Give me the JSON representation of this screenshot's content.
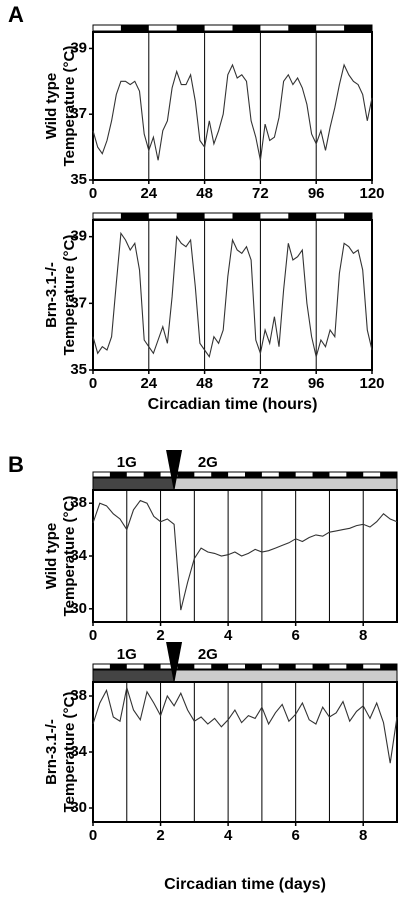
{
  "chart_data": [
    {
      "type": "line",
      "panel": "A",
      "ylabel": [
        "Wild type",
        "Temperature (°C)"
      ],
      "color": "#333333",
      "xlim": [
        0,
        120
      ],
      "xticks": [
        0,
        24,
        48,
        72,
        96,
        120
      ],
      "ylim": [
        35,
        39.5
      ],
      "yticks": [
        35,
        37,
        39
      ],
      "vlines": [
        24,
        48,
        72,
        96
      ],
      "light_dark": {
        "period": 24,
        "dark_start": 12
      },
      "x": [
        0,
        2,
        4,
        6,
        8,
        10,
        12,
        14,
        16,
        18,
        20,
        22,
        24,
        26,
        28,
        30,
        32,
        34,
        36,
        38,
        40,
        42,
        44,
        46,
        48,
        50,
        52,
        54,
        56,
        58,
        60,
        62,
        64,
        66,
        68,
        70,
        72,
        74,
        76,
        78,
        80,
        82,
        84,
        86,
        88,
        90,
        92,
        94,
        96,
        98,
        100,
        102,
        104,
        106,
        108,
        110,
        112,
        114,
        116,
        118,
        120
      ],
      "values": [
        36.5,
        36.0,
        35.8,
        36.2,
        36.8,
        37.6,
        38.0,
        38.0,
        37.9,
        38.0,
        37.7,
        36.4,
        35.9,
        36.3,
        35.6,
        36.5,
        36.8,
        37.8,
        38.3,
        37.9,
        37.9,
        38.2,
        37.4,
        36.2,
        36.0,
        36.8,
        36.1,
        36.5,
        37.0,
        38.2,
        38.5,
        38.1,
        38.2,
        38.0,
        36.8,
        36.3,
        35.6,
        36.7,
        36.2,
        36.3,
        36.9,
        38.0,
        38.2,
        37.9,
        38.1,
        37.8,
        37.3,
        36.4,
        36.1,
        36.5,
        35.9,
        36.6,
        37.2,
        37.9,
        38.5,
        38.2,
        38.0,
        37.9,
        37.6,
        36.8,
        37.5
      ]
    },
    {
      "type": "line",
      "ylabel": [
        "Brn-3.1-/-",
        "Temperature (°C)"
      ],
      "xlabel": "Circadian time (hours)",
      "color": "#333333",
      "xlim": [
        0,
        120
      ],
      "xticks": [
        0,
        24,
        48,
        72,
        96,
        120
      ],
      "ylim": [
        35,
        39.5
      ],
      "yticks": [
        35,
        37,
        39
      ],
      "vlines": [
        24,
        48,
        72,
        96
      ],
      "light_dark": {
        "period": 24,
        "dark_start": 12
      },
      "x": [
        0,
        2,
        4,
        6,
        8,
        10,
        12,
        14,
        16,
        18,
        20,
        22,
        24,
        26,
        28,
        30,
        32,
        34,
        36,
        38,
        40,
        42,
        44,
        46,
        48,
        50,
        52,
        54,
        56,
        58,
        60,
        62,
        64,
        66,
        68,
        70,
        72,
        74,
        76,
        78,
        80,
        82,
        84,
        86,
        88,
        90,
        92,
        94,
        96,
        98,
        100,
        102,
        104,
        106,
        108,
        110,
        112,
        114,
        116,
        118,
        120
      ],
      "values": [
        36.0,
        35.5,
        35.7,
        35.6,
        36.0,
        37.6,
        39.1,
        38.9,
        38.6,
        38.8,
        38.0,
        35.9,
        35.7,
        35.5,
        35.9,
        36.3,
        35.8,
        37.2,
        39.0,
        38.8,
        38.7,
        38.9,
        37.5,
        35.8,
        35.6,
        35.4,
        36.0,
        35.8,
        36.2,
        37.8,
        38.9,
        38.6,
        38.5,
        38.7,
        38.3,
        35.9,
        35.5,
        36.2,
        35.8,
        36.6,
        35.7,
        37.4,
        38.8,
        38.3,
        38.4,
        38.6,
        37.0,
        36.0,
        35.4,
        35.9,
        35.7,
        36.2,
        36.0,
        37.9,
        38.8,
        38.7,
        38.5,
        38.6,
        38.0,
        36.2,
        35.6
      ]
    },
    {
      "type": "line",
      "panel": "B",
      "ylabel": [
        "Wild type",
        "Temperature (°C)"
      ],
      "color": "#333333",
      "xlim": [
        0,
        9
      ],
      "xticks": [
        0,
        2,
        4,
        6,
        8
      ],
      "ylim": [
        29,
        39
      ],
      "yticks": [
        30,
        34,
        38
      ],
      "vlines": [
        1,
        2,
        3,
        4,
        5,
        6,
        7,
        8
      ],
      "light_dark": {
        "period": 1,
        "dark_start": 0.5
      },
      "phases": [
        {
          "label": "1G",
          "start": 0,
          "end": 2.4,
          "color": "#444444"
        },
        {
          "label": "2G",
          "start": 2.4,
          "end": 9,
          "color": "#cccccc"
        }
      ],
      "arrow_x": 2.4,
      "x": [
        0,
        0.2,
        0.4,
        0.6,
        0.8,
        1,
        1.2,
        1.4,
        1.6,
        1.8,
        2,
        2.2,
        2.4,
        2.6,
        2.8,
        3,
        3.2,
        3.4,
        3.6,
        3.8,
        4,
        4.2,
        4.4,
        4.6,
        4.8,
        5,
        5.2,
        5.4,
        5.6,
        5.8,
        6,
        6.2,
        6.4,
        6.6,
        6.8,
        7,
        7.2,
        7.4,
        7.6,
        7.8,
        8,
        8.2,
        8.4,
        8.6,
        8.8,
        9
      ],
      "values": [
        36.5,
        38.0,
        37.8,
        37.2,
        36.8,
        36.0,
        37.5,
        38.2,
        38.0,
        37.0,
        36.6,
        36.8,
        36.4,
        29.9,
        32.0,
        33.8,
        34.6,
        34.3,
        34.2,
        34.0,
        34.1,
        34.3,
        34.0,
        34.2,
        34.5,
        34.3,
        34.4,
        34.6,
        34.8,
        35.0,
        35.3,
        35.1,
        35.4,
        35.6,
        35.5,
        35.8,
        35.9,
        36.0,
        36.1,
        36.3,
        36.4,
        36.2,
        36.6,
        37.2,
        36.8,
        36.6
      ]
    },
    {
      "type": "line",
      "ylabel": [
        "Brn-3.1-/-",
        "Temperature (°C)"
      ],
      "xlabel": "Circadian time (days)",
      "color": "#333333",
      "xlim": [
        0,
        9
      ],
      "xticks": [
        0,
        2,
        4,
        6,
        8
      ],
      "ylim": [
        29,
        39
      ],
      "yticks": [
        30,
        34,
        38
      ],
      "vlines": [
        1,
        2,
        3,
        4,
        5,
        6,
        7,
        8
      ],
      "light_dark": {
        "period": 1,
        "dark_start": 0.5
      },
      "phases": [
        {
          "label": "1G",
          "start": 0,
          "end": 2.4,
          "color": "#444444"
        },
        {
          "label": "2G",
          "start": 2.4,
          "end": 9,
          "color": "#cccccc"
        }
      ],
      "arrow_x": 2.4,
      "x": [
        0,
        0.2,
        0.4,
        0.6,
        0.8,
        1,
        1.2,
        1.4,
        1.6,
        1.8,
        2,
        2.2,
        2.4,
        2.6,
        2.8,
        3,
        3.2,
        3.4,
        3.6,
        3.8,
        4,
        4.2,
        4.4,
        4.6,
        4.8,
        5,
        5.2,
        5.4,
        5.6,
        5.8,
        6,
        6.2,
        6.4,
        6.6,
        6.8,
        7,
        7.2,
        7.4,
        7.6,
        7.8,
        8,
        8.2,
        8.4,
        8.6,
        8.8,
        9
      ],
      "values": [
        36.0,
        37.5,
        38.4,
        36.5,
        36.2,
        38.6,
        37.0,
        36.3,
        38.3,
        37.5,
        36.6,
        38.0,
        37.3,
        38.2,
        37.0,
        36.2,
        36.5,
        36.0,
        36.4,
        35.8,
        36.3,
        37.0,
        36.1,
        36.6,
        36.4,
        37.2,
        36.0,
        36.8,
        37.4,
        36.2,
        36.7,
        37.5,
        36.3,
        36.0,
        37.2,
        36.5,
        36.8,
        37.6,
        36.2,
        36.9,
        37.3,
        36.4,
        37.5,
        36.1,
        33.2,
        36.5
      ]
    }
  ]
}
